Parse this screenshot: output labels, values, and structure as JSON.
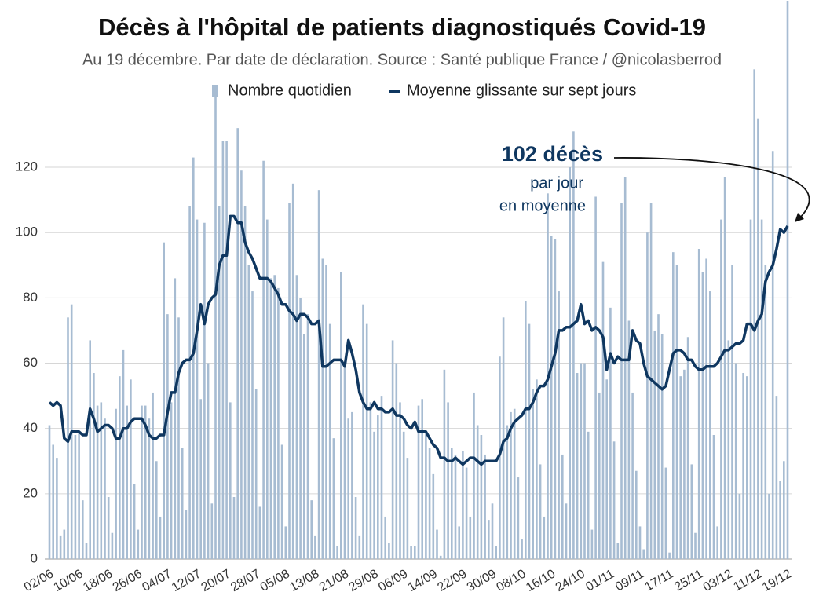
{
  "chart_data": {
    "type": "bar",
    "title": "Décès à l'hôpital de patients diagnostiqués Covid-19",
    "subtitle": "Au 19 décembre. Par date de déclaration. Source : Santé publique France / @nicolasberrod",
    "annotation": {
      "headline": "102 décès",
      "lines": [
        "par jour",
        "en moyenne"
      ]
    },
    "categories": [
      "02/06",
      null,
      null,
      null,
      null,
      null,
      null,
      null,
      "10/06",
      null,
      null,
      null,
      null,
      null,
      null,
      null,
      "18/06",
      null,
      null,
      null,
      null,
      null,
      null,
      null,
      "26/06",
      null,
      null,
      null,
      null,
      null,
      null,
      null,
      "04/07",
      null,
      null,
      null,
      null,
      null,
      null,
      null,
      "12/07",
      null,
      null,
      null,
      null,
      null,
      null,
      null,
      "20/07",
      null,
      null,
      null,
      null,
      null,
      null,
      null,
      "28/07",
      null,
      null,
      null,
      null,
      null,
      null,
      null,
      "05/08",
      null,
      null,
      null,
      null,
      null,
      null,
      null,
      "13/08",
      null,
      null,
      null,
      null,
      null,
      null,
      null,
      "21/08",
      null,
      null,
      null,
      null,
      null,
      null,
      null,
      "29/08",
      null,
      null,
      null,
      null,
      null,
      null,
      null,
      "06/09",
      null,
      null,
      null,
      null,
      null,
      null,
      null,
      "14/09",
      null,
      null,
      null,
      null,
      null,
      null,
      null,
      "22/09",
      null,
      null,
      null,
      null,
      null,
      null,
      null,
      "30/09",
      null,
      null,
      null,
      null,
      null,
      null,
      null,
      "08/10",
      null,
      null,
      null,
      null,
      null,
      null,
      null,
      "16/10",
      null,
      null,
      null,
      null,
      null,
      null,
      null,
      "24/10",
      null,
      null,
      null,
      null,
      null,
      null,
      null,
      "01/11",
      null,
      null,
      null,
      null,
      null,
      null,
      null,
      "09/11",
      null,
      null,
      null,
      null,
      null,
      null,
      null,
      "17/11",
      null,
      null,
      null,
      null,
      null,
      null,
      null,
      "25/11",
      null,
      null,
      null,
      null,
      null,
      null,
      null,
      "03/12",
      null,
      null,
      null,
      null,
      null,
      null,
      null,
      "11/12",
      null,
      null,
      null,
      null,
      null,
      null,
      null,
      "19/12"
    ],
    "series": [
      {
        "name": "Nombre quotidien",
        "type": "bar",
        "color": "#a7bcd2",
        "values": [
          41,
          35,
          31,
          7,
          9,
          74,
          78,
          38,
          39,
          18,
          5,
          67,
          57,
          47,
          48,
          43,
          19,
          8,
          46,
          56,
          64,
          47,
          55,
          23,
          9,
          47,
          47,
          43,
          51,
          30,
          13,
          97,
          75,
          48,
          86,
          74,
          34,
          15,
          108,
          123,
          104,
          49,
          103,
          60,
          17,
          143,
          108,
          128,
          128,
          48,
          19,
          132,
          119,
          108,
          90,
          82,
          52,
          16,
          122,
          104,
          86,
          87,
          83,
          35,
          10,
          109,
          115,
          87,
          80,
          69,
          75,
          18,
          7,
          113,
          92,
          90,
          72,
          37,
          4,
          88,
          60,
          43,
          45,
          19,
          7,
          78,
          72,
          48,
          39,
          44,
          50,
          13,
          5,
          67,
          60,
          48,
          39,
          31,
          4,
          4,
          47,
          49,
          39,
          34,
          26,
          9,
          1,
          58,
          48,
          34,
          32,
          10,
          33,
          28,
          13,
          51,
          41,
          38,
          32,
          12,
          17,
          4,
          62,
          74,
          41,
          45,
          46,
          25,
          6,
          79,
          72,
          52,
          55,
          29,
          13,
          112,
          99,
          98,
          82,
          32,
          17,
          120,
          131,
          57,
          60,
          60,
          39,
          9,
          111,
          51,
          91,
          55,
          77,
          36,
          5,
          109,
          117,
          73,
          51,
          27,
          10,
          3,
          100,
          109,
          70,
          75,
          69,
          28,
          2,
          94,
          90,
          56,
          58,
          68,
          29,
          8,
          95,
          88,
          92,
          82,
          38,
          10,
          104,
          117,
          67,
          90,
          60,
          20,
          57,
          56,
          104,
          150,
          135,
          104,
          90,
          20,
          125,
          50,
          24,
          30,
          171
        ]
      },
      {
        "name": "Moyenne glissante sur sept jours",
        "type": "line",
        "color": "#0f3760",
        "values": [
          48,
          47,
          48,
          47,
          37,
          36,
          39,
          39,
          39,
          38,
          38,
          46,
          43,
          39,
          40,
          41,
          41,
          40,
          37,
          37,
          40,
          40,
          42,
          43,
          43,
          43,
          41,
          38,
          37,
          37,
          38,
          38,
          45,
          51,
          51,
          57,
          60,
          61,
          61,
          63,
          70,
          78,
          72,
          78,
          80,
          81,
          90,
          93,
          93,
          105,
          105,
          103,
          103,
          97,
          94,
          92,
          89,
          86,
          86,
          86,
          85,
          83,
          81,
          78,
          78,
          76,
          75,
          73,
          75,
          75,
          74,
          72,
          72,
          73,
          59,
          59,
          60,
          61,
          61,
          61,
          59,
          67,
          63,
          58,
          51,
          48,
          46,
          46,
          48,
          46,
          46,
          45,
          45,
          46,
          44,
          44,
          43,
          41,
          40,
          42,
          39,
          39,
          39,
          37,
          35,
          34,
          31,
          31,
          30,
          30,
          31,
          30,
          29,
          30,
          31,
          31,
          30,
          29,
          30,
          30,
          30,
          30,
          32,
          36,
          37,
          40,
          42,
          43,
          44,
          46,
          46,
          48,
          51,
          53,
          53,
          55,
          59,
          63,
          70,
          70,
          71,
          71,
          72,
          73,
          78,
          72,
          73,
          70,
          71,
          70,
          68,
          58,
          63,
          60,
          62,
          61,
          61,
          61,
          70,
          67,
          66,
          60,
          56,
          55,
          54,
          53,
          52,
          53,
          58,
          63,
          64,
          64,
          63,
          61,
          61,
          59,
          58,
          58,
          59,
          59,
          59,
          60,
          62,
          64,
          64,
          65,
          66,
          66,
          67,
          72,
          72,
          70,
          73,
          75,
          85,
          88,
          90,
          95,
          101,
          100,
          102
        ]
      }
    ],
    "ylim": [
      0,
      171
    ],
    "yticks": [
      0,
      20,
      40,
      60,
      80,
      100,
      120
    ],
    "grid": true
  }
}
